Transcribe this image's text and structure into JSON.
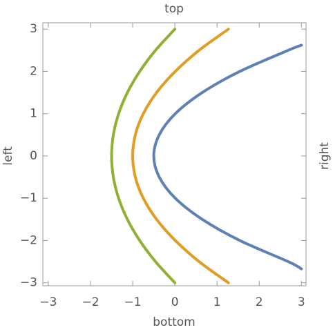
{
  "chart_data": {
    "type": "line",
    "frame_labels": {
      "top": "top",
      "bottom": "bottom",
      "left": "left",
      "right": "right"
    },
    "xlim": [
      -3.13,
      3.11
    ],
    "ylim": [
      -3.07,
      3.15
    ],
    "xticks": [
      {
        "value": -3,
        "label": "−3"
      },
      {
        "value": -2,
        "label": "−2"
      },
      {
        "value": -1,
        "label": "−1"
      },
      0,
      1,
      2,
      3
    ],
    "yticks": [
      {
        "value": -3,
        "label": "−3"
      },
      {
        "value": -2,
        "label": "−2"
      },
      {
        "value": -1,
        "label": "−1"
      },
      0,
      1,
      2,
      3
    ],
    "series": [
      {
        "color": "#5e81b5",
        "x": [
          3,
          2.69,
          1.54,
          0.65,
          0.01,
          -0.37,
          -0.5,
          -0.37,
          0.01,
          0.65,
          1.54,
          2.69,
          3
        ],
        "y": [
          -2.67,
          -2.5,
          -2,
          -1.5,
          -1,
          -0.5,
          0,
          0.5,
          1,
          1.5,
          2,
          2.5,
          2.62
        ]
      },
      {
        "color": "#e19c24",
        "x": [
          1.27,
          0.575,
          0.01,
          -0.433,
          -0.748,
          -0.937,
          -1,
          -0.937,
          -0.748,
          -0.433,
          0.01,
          0.575,
          1.27
        ],
        "y": [
          -3,
          -2.5,
          -2,
          -1.5,
          -1,
          -0.5,
          0,
          0.5,
          1,
          1.5,
          2,
          2.5,
          3
        ]
      },
      {
        "color": "#8fb032",
        "x": [
          0,
          -0.458,
          -0.833,
          -1.125,
          -1.333,
          -1.458,
          -1.5,
          -1.458,
          -1.333,
          -1.125,
          -0.833,
          -0.458,
          0
        ],
        "y": [
          -3,
          -2.5,
          -2,
          -1.5,
          -1,
          -0.5,
          0,
          0.5,
          1,
          1.5,
          2,
          2.5,
          3
        ]
      }
    ]
  }
}
